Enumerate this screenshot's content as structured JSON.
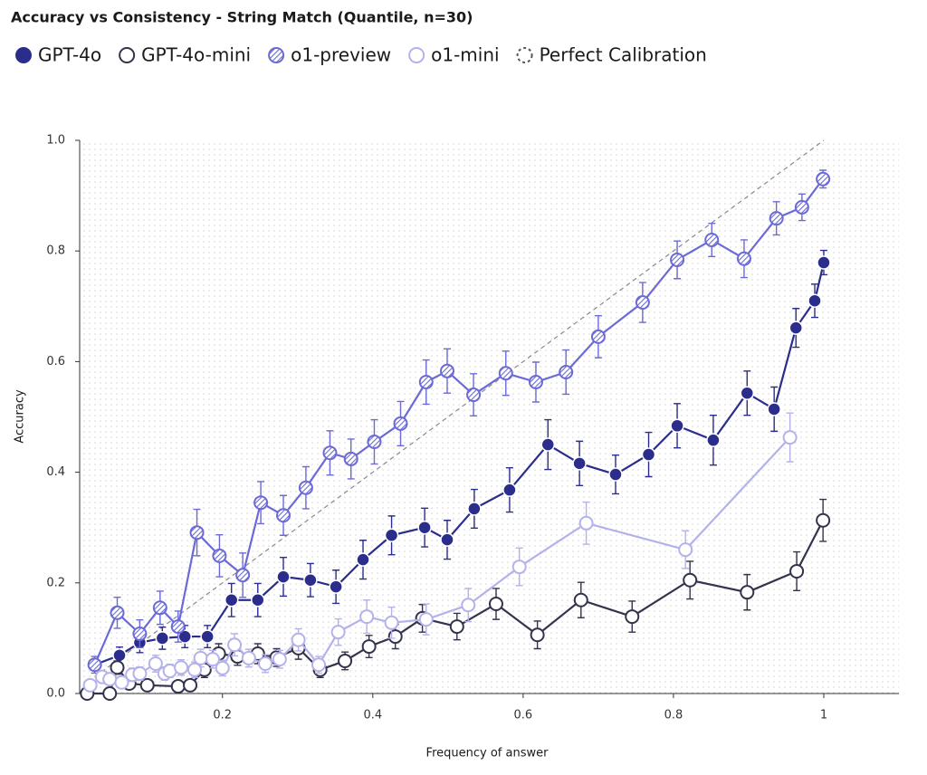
{
  "chart_data": {
    "type": "line",
    "title": "Accuracy vs Consistency - String Match (Quantile, n=30)",
    "x_label": "Frequency of answer",
    "y_label": "Accuracy",
    "xlim": [
      0.01,
      1.1
    ],
    "ylim": [
      0,
      1
    ],
    "xticks": [
      0.2,
      0.4,
      0.6,
      0.8,
      1
    ],
    "yticks": [
      {
        "value": 0,
        "label": "0.0"
      },
      0.2,
      0.4,
      0.6,
      0.8,
      {
        "value": 1,
        "label": "1.0"
      }
    ],
    "series": [
      {
        "name": "GPT-4o",
        "color": "#2b2d8c",
        "marker": "filled",
        "x": [
          0.03,
          0.063,
          0.09,
          0.12,
          0.15,
          0.18,
          0.212,
          0.247,
          0.281,
          0.317,
          0.351,
          0.387,
          0.425,
          0.469,
          0.499,
          0.535,
          0.582,
          0.633,
          0.675,
          0.723,
          0.767,
          0.805,
          0.853,
          0.898,
          0.934,
          0.963,
          0.988,
          1.0
        ],
        "values": [
          0.052,
          0.069,
          0.092,
          0.1,
          0.103,
          0.103,
          0.169,
          0.169,
          0.211,
          0.205,
          0.193,
          0.242,
          0.286,
          0.3,
          0.278,
          0.334,
          0.368,
          0.45,
          0.416,
          0.396,
          0.432,
          0.484,
          0.458,
          0.543,
          0.514,
          0.661,
          0.71,
          0.779
        ],
        "errors": [
          0.01,
          0.015,
          0.018,
          0.02,
          0.02,
          0.02,
          0.03,
          0.03,
          0.035,
          0.03,
          0.03,
          0.035,
          0.035,
          0.035,
          0.035,
          0.035,
          0.04,
          0.045,
          0.04,
          0.035,
          0.04,
          0.04,
          0.045,
          0.04,
          0.04,
          0.035,
          0.03,
          0.022
        ]
      },
      {
        "name": "GPT-4o-mini",
        "color": "#33334d",
        "marker": "open",
        "x": [
          0.02,
          0.05,
          0.06,
          0.076,
          0.1,
          0.141,
          0.157,
          0.176,
          0.195,
          0.22,
          0.247,
          0.272,
          0.301,
          0.33,
          0.363,
          0.395,
          0.43,
          0.466,
          0.512,
          0.564,
          0.619,
          0.677,
          0.745,
          0.822,
          0.898,
          0.964,
          0.999
        ],
        "values": [
          0,
          0,
          0.047,
          0.018,
          0.015,
          0.013,
          0.015,
          0.043,
          0.072,
          0.067,
          0.072,
          0.065,
          0.082,
          0.043,
          0.059,
          0.085,
          0.103,
          0.136,
          0.121,
          0.162,
          0.106,
          0.169,
          0.139,
          0.205,
          0.183,
          0.221,
          0.313
        ],
        "errors": [
          0.005,
          0.005,
          0.012,
          0.008,
          0.008,
          0.008,
          0.008,
          0.014,
          0.018,
          0.016,
          0.018,
          0.016,
          0.02,
          0.014,
          0.016,
          0.02,
          0.022,
          0.025,
          0.024,
          0.028,
          0.025,
          0.032,
          0.028,
          0.034,
          0.032,
          0.035,
          0.038
        ]
      },
      {
        "name": "o1-preview",
        "color": "#6b6ad6",
        "marker": "hatched",
        "x": [
          0.03,
          0.06,
          0.09,
          0.117,
          0.141,
          0.166,
          0.196,
          0.227,
          0.251,
          0.281,
          0.311,
          0.343,
          0.371,
          0.402,
          0.437,
          0.471,
          0.499,
          0.534,
          0.577,
          0.617,
          0.657,
          0.7,
          0.759,
          0.805,
          0.851,
          0.894,
          0.937,
          0.971,
          0.999
        ],
        "values": [
          0.052,
          0.146,
          0.108,
          0.155,
          0.121,
          0.291,
          0.249,
          0.214,
          0.345,
          0.322,
          0.372,
          0.435,
          0.424,
          0.455,
          0.488,
          0.563,
          0.583,
          0.54,
          0.579,
          0.563,
          0.581,
          0.645,
          0.707,
          0.784,
          0.82,
          0.786,
          0.859,
          0.879,
          0.93
        ],
        "errors": [
          0.015,
          0.028,
          0.025,
          0.03,
          0.028,
          0.042,
          0.038,
          0.04,
          0.038,
          0.036,
          0.038,
          0.04,
          0.036,
          0.04,
          0.04,
          0.04,
          0.04,
          0.038,
          0.04,
          0.036,
          0.04,
          0.038,
          0.036,
          0.034,
          0.03,
          0.034,
          0.03,
          0.024,
          0.016
        ]
      },
      {
        "name": "o1-mini",
        "color": "#b3b2ea",
        "marker": "open",
        "x": [
          0.024,
          0.04,
          0.05,
          0.066,
          0.08,
          0.09,
          0.111,
          0.123,
          0.13,
          0.145,
          0.163,
          0.171,
          0.187,
          0.2,
          0.216,
          0.235,
          0.257,
          0.276,
          0.301,
          0.328,
          0.354,
          0.392,
          0.425,
          0.471,
          0.527,
          0.595,
          0.684,
          0.816,
          0.955
        ],
        "values": [
          0.015,
          0.03,
          0.026,
          0.02,
          0.034,
          0.036,
          0.054,
          0.036,
          0.041,
          0.047,
          0.043,
          0.064,
          0.062,
          0.046,
          0.088,
          0.064,
          0.054,
          0.062,
          0.097,
          0.052,
          0.111,
          0.139,
          0.128,
          0.134,
          0.16,
          0.229,
          0.308,
          0.26,
          0.463
        ],
        "errors": [
          0.008,
          0.01,
          0.01,
          0.01,
          0.012,
          0.012,
          0.015,
          0.012,
          0.012,
          0.014,
          0.014,
          0.016,
          0.016,
          0.014,
          0.02,
          0.016,
          0.016,
          0.016,
          0.02,
          0.015,
          0.024,
          0.03,
          0.028,
          0.028,
          0.03,
          0.034,
          0.038,
          0.034,
          0.044
        ]
      },
      {
        "name": "Perfect Calibration",
        "color": "#8a8a8a",
        "marker": "dashed",
        "x": [
          0.03,
          1
        ],
        "values": [
          0.03,
          1
        ]
      }
    ]
  }
}
